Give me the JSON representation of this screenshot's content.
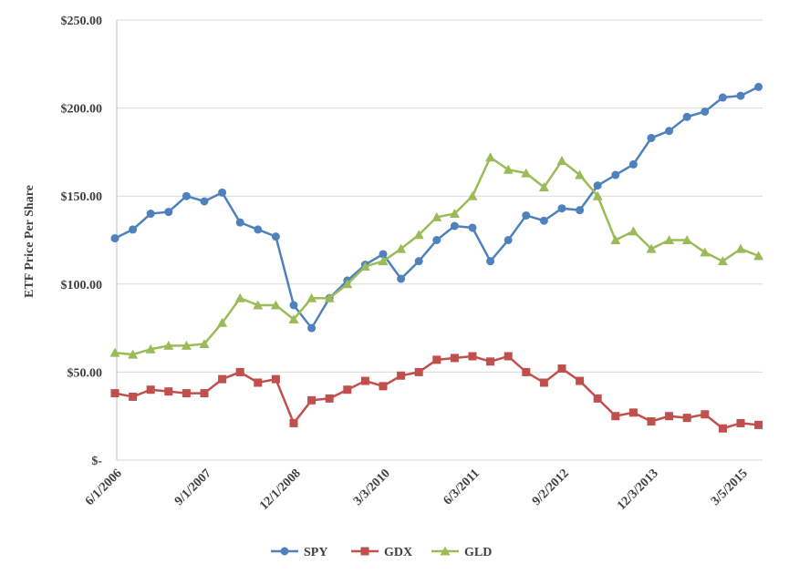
{
  "chart_data": {
    "type": "line",
    "title": "",
    "xlabel": "",
    "ylabel": "ETF Price Per Share",
    "ylim": [
      0,
      250
    ],
    "yticks": [
      0,
      50,
      100,
      150,
      200,
      250
    ],
    "ytick_labels": [
      "$-",
      "$50.00",
      "$100.00",
      "$150.00",
      "$200.00",
      "$250.00"
    ],
    "x_note": "quarterly points from 6/1/2006",
    "xtick_labels": [
      "6/1/2006",
      "9/1/2007",
      "12/1/2008",
      "3/3/2010",
      "6/3/2011",
      "9/2/2012",
      "12/3/2013",
      "3/5/2015"
    ],
    "xtick_index": [
      0,
      5,
      10,
      15,
      20,
      25,
      30,
      35
    ],
    "grid": true,
    "legend_position": "bottom",
    "series": [
      {
        "name": "SPY",
        "color": "#4f81bd",
        "marker": "circle",
        "values": [
          126,
          131,
          140,
          141,
          150,
          147,
          152,
          135,
          131,
          127,
          88,
          75,
          92,
          102,
          111,
          117,
          103,
          113,
          125,
          133,
          132,
          113,
          125,
          139,
          136,
          143,
          142,
          156,
          162,
          168,
          183,
          187,
          195,
          198,
          206,
          207,
          212
        ]
      },
      {
        "name": "GDX",
        "color": "#c0504d",
        "marker": "square",
        "values": [
          38,
          36,
          40,
          39,
          38,
          38,
          46,
          50,
          44,
          46,
          21,
          34,
          35,
          40,
          45,
          42,
          48,
          50,
          57,
          58,
          59,
          56,
          59,
          50,
          44,
          52,
          45,
          35,
          25,
          27,
          22,
          25,
          24,
          26,
          18,
          21,
          20
        ]
      },
      {
        "name": "GLD",
        "color": "#9bbb59",
        "marker": "triangle",
        "values": [
          61,
          60,
          63,
          65,
          65,
          66,
          78,
          92,
          88,
          88,
          80,
          92,
          92,
          100,
          110,
          113,
          120,
          128,
          138,
          140,
          150,
          172,
          165,
          163,
          155,
          170,
          162,
          150,
          125,
          130,
          120,
          125,
          125,
          118,
          113,
          120,
          116
        ]
      }
    ]
  }
}
